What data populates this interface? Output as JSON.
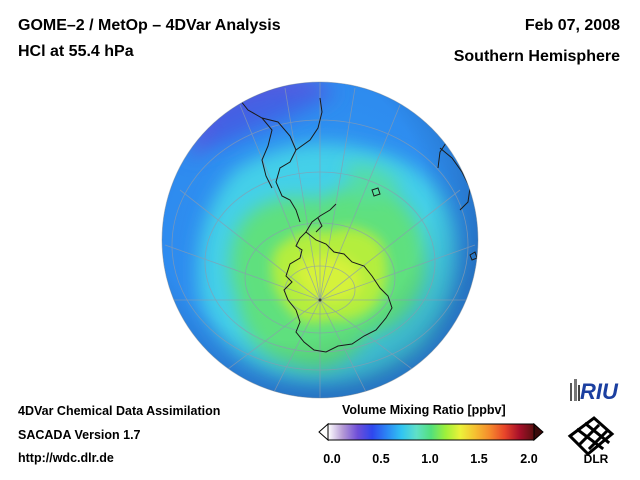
{
  "header": {
    "title_line1": "GOME–2 / MetOp – 4DVar Analysis",
    "title_line2": "HCl at 55.4 hPa",
    "date": "Feb 07, 2008",
    "hemisphere": "Southern Hemisphere"
  },
  "footer": {
    "line1": "4DVar Chemical Data Assimilation",
    "line2": "SACADA Version 1.7",
    "line3": "http://wdc.dlr.de"
  },
  "colorbar": {
    "title": "Volume Mixing Ratio [ppbv]",
    "ticks": [
      "0.0",
      "0.5",
      "1.0",
      "1.5",
      "2.0"
    ],
    "min": 0.0,
    "max": 2.0,
    "colors": [
      "#ffffff",
      "#b59ad6",
      "#6f4fd8",
      "#2f47ee",
      "#2b86f5",
      "#31c4f2",
      "#5fe0c8",
      "#52e07c",
      "#9ef03a",
      "#ecf23a",
      "#f5c031",
      "#f58a2c",
      "#e8452a",
      "#a8102a",
      "#5a1010"
    ]
  },
  "logos": {
    "riu": "RIU",
    "dlr": "DLR"
  },
  "map_icons": {
    "globe": "globe-map",
    "pole": "south-pole-marker"
  }
}
